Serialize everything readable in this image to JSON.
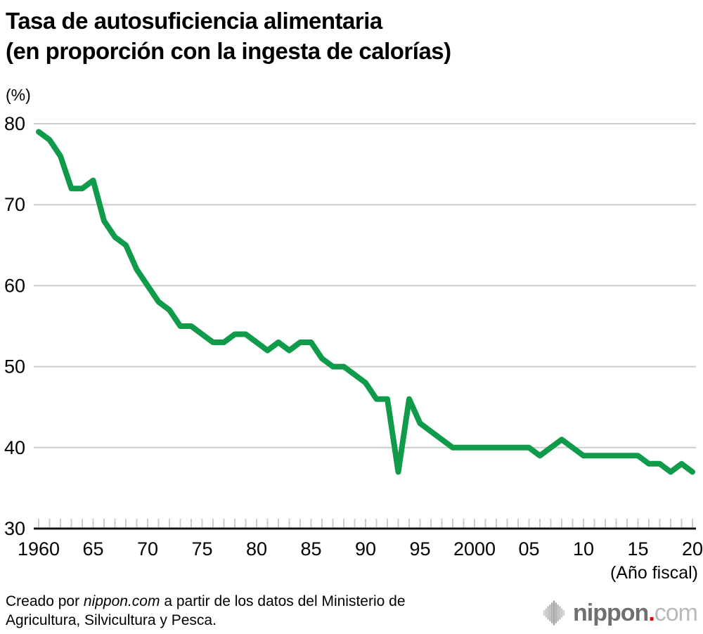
{
  "header": {
    "title_line1": "Tasa de autosuficiencia alimentaria",
    "title_line2": "(en proporción con la ingesta de calorías)",
    "unit_label": "(%)"
  },
  "chart_data": {
    "type": "line",
    "title": "Tasa de autosuficiencia alimentaria (en proporción con la ingesta de calorías)",
    "series_name": "Tasa de autosuficiencia alimentaria",
    "xlabel": "(Año fiscal)",
    "ylabel": "(%)",
    "xlim": [
      1960,
      2020
    ],
    "ylim": [
      30,
      80
    ],
    "grid": "horizontal",
    "legend": "none",
    "line_color": "#0f9b4a",
    "gridline_color": "#cccccc",
    "axis_color": "#111111",
    "tick_color": "#cccccc",
    "years": [
      1960,
      1961,
      1962,
      1963,
      1964,
      1965,
      1966,
      1967,
      1968,
      1969,
      1970,
      1971,
      1972,
      1973,
      1974,
      1975,
      1976,
      1977,
      1978,
      1979,
      1980,
      1981,
      1982,
      1983,
      1984,
      1985,
      1986,
      1987,
      1988,
      1989,
      1990,
      1991,
      1992,
      1993,
      1994,
      1995,
      1996,
      1997,
      1998,
      1999,
      2000,
      2001,
      2002,
      2003,
      2004,
      2005,
      2006,
      2007,
      2008,
      2009,
      2010,
      2011,
      2012,
      2013,
      2014,
      2015,
      2016,
      2017,
      2018,
      2019,
      2020
    ],
    "values": [
      79,
      78,
      76,
      72,
      72,
      73,
      68,
      66,
      65,
      62,
      60,
      58,
      57,
      55,
      55,
      54,
      53,
      53,
      54,
      54,
      53,
      52,
      53,
      52,
      53,
      53,
      51,
      50,
      50,
      49,
      48,
      46,
      46,
      37,
      46,
      43,
      42,
      41,
      40,
      40,
      40,
      40,
      40,
      40,
      40,
      40,
      39,
      40,
      41,
      40,
      39,
      39,
      39,
      39,
      39,
      39,
      38,
      38,
      37,
      38,
      37
    ],
    "y_ticks": [
      80,
      70,
      60,
      50,
      40,
      30
    ],
    "x_tick_labels": [
      {
        "year": 1960,
        "label": "1960"
      },
      {
        "year": 1965,
        "label": "65"
      },
      {
        "year": 1970,
        "label": "70"
      },
      {
        "year": 1975,
        "label": "75"
      },
      {
        "year": 1980,
        "label": "80"
      },
      {
        "year": 1985,
        "label": "85"
      },
      {
        "year": 1990,
        "label": "90"
      },
      {
        "year": 1995,
        "label": "95"
      },
      {
        "year": 2000,
        "label": "2000"
      },
      {
        "year": 2005,
        "label": "05"
      },
      {
        "year": 2010,
        "label": "10"
      },
      {
        "year": 2015,
        "label": "15"
      },
      {
        "year": 2020,
        "label": "20"
      }
    ]
  },
  "xaxis_caption": "(Año fiscal)",
  "footer": {
    "line1_prefix": "Creado por ",
    "line1_source": "nippon.com",
    "line1_suffix": " a partir de los datos del Ministerio de",
    "line2": "Agricultura, Silvicultura y Pesca."
  },
  "logo": {
    "wordmark_main": "nippon",
    "wordmark_dot": ".",
    "wordmark_tld": "com",
    "dot_color": "#e60012"
  }
}
